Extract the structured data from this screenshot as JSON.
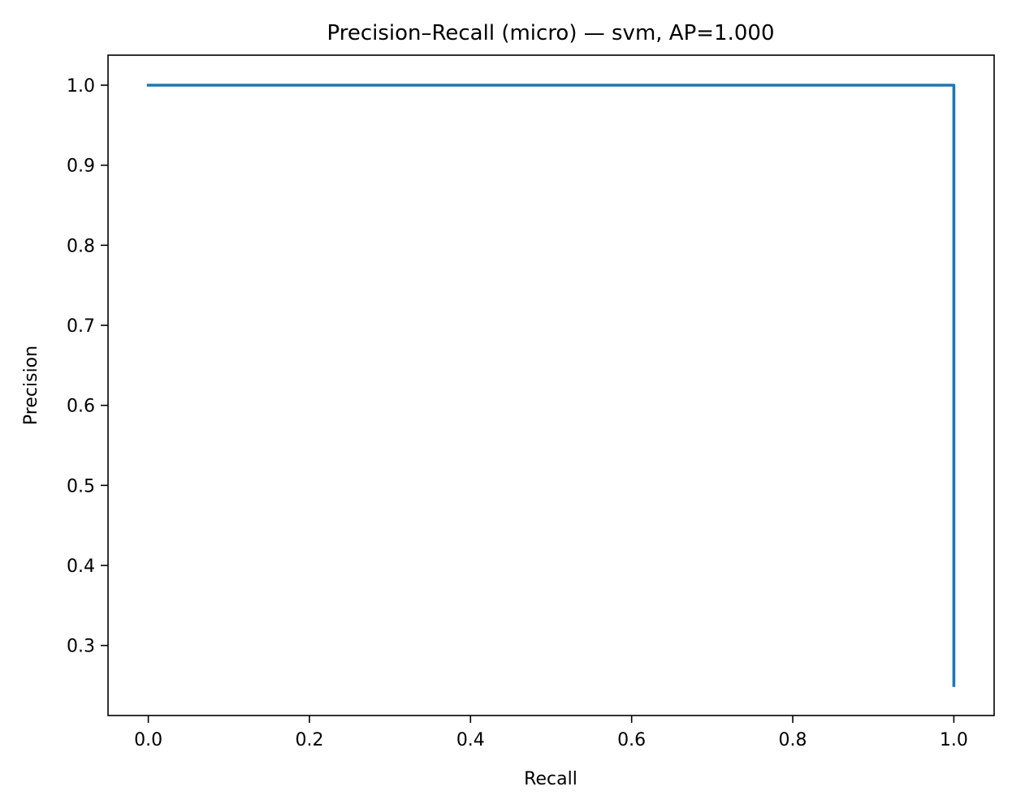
{
  "chart_data": {
    "type": "line",
    "title": "Precision–Recall (micro) — svm, AP=1.000",
    "xlabel": "Recall",
    "ylabel": "Precision",
    "xlim": [
      -0.05,
      1.05
    ],
    "ylim": [
      0.2125,
      1.0375
    ],
    "xticks": [
      0.0,
      0.2,
      0.4,
      0.6,
      0.8,
      1.0
    ],
    "xtick_labels": [
      "0.0",
      "0.2",
      "0.4",
      "0.6",
      "0.8",
      "1.0"
    ],
    "yticks": [
      0.3,
      0.4,
      0.5,
      0.6,
      0.7,
      0.8,
      0.9,
      1.0
    ],
    "ytick_labels": [
      "0.3",
      "0.4",
      "0.5",
      "0.6",
      "0.7",
      "0.8",
      "0.9",
      "1.0"
    ],
    "grid": false,
    "series": [
      {
        "color": "#1f77b4",
        "x": [
          0.0,
          1.0,
          1.0
        ],
        "y": [
          1.0,
          1.0,
          0.25
        ]
      }
    ]
  }
}
